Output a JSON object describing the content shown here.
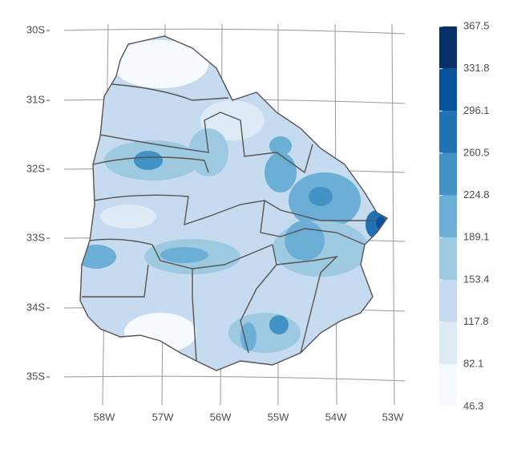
{
  "map": {
    "lat_labels": [
      "30S",
      "31S",
      "32S",
      "33S",
      "34S",
      "35S"
    ],
    "lon_labels": [
      "58W",
      "57W",
      "56W",
      "55W",
      "54W",
      "53W"
    ],
    "legend": {
      "breaks": [
        46.3,
        82.1,
        117.8,
        153.4,
        189.1,
        224.8,
        260.5,
        296.1,
        331.8,
        367.5
      ],
      "colors": [
        "#f7fbff",
        "#deebf7",
        "#c6dbef",
        "#9ecae1",
        "#6baed6",
        "#4292c6",
        "#2171b5",
        "#08519c",
        "#08306b"
      ]
    }
  }
}
